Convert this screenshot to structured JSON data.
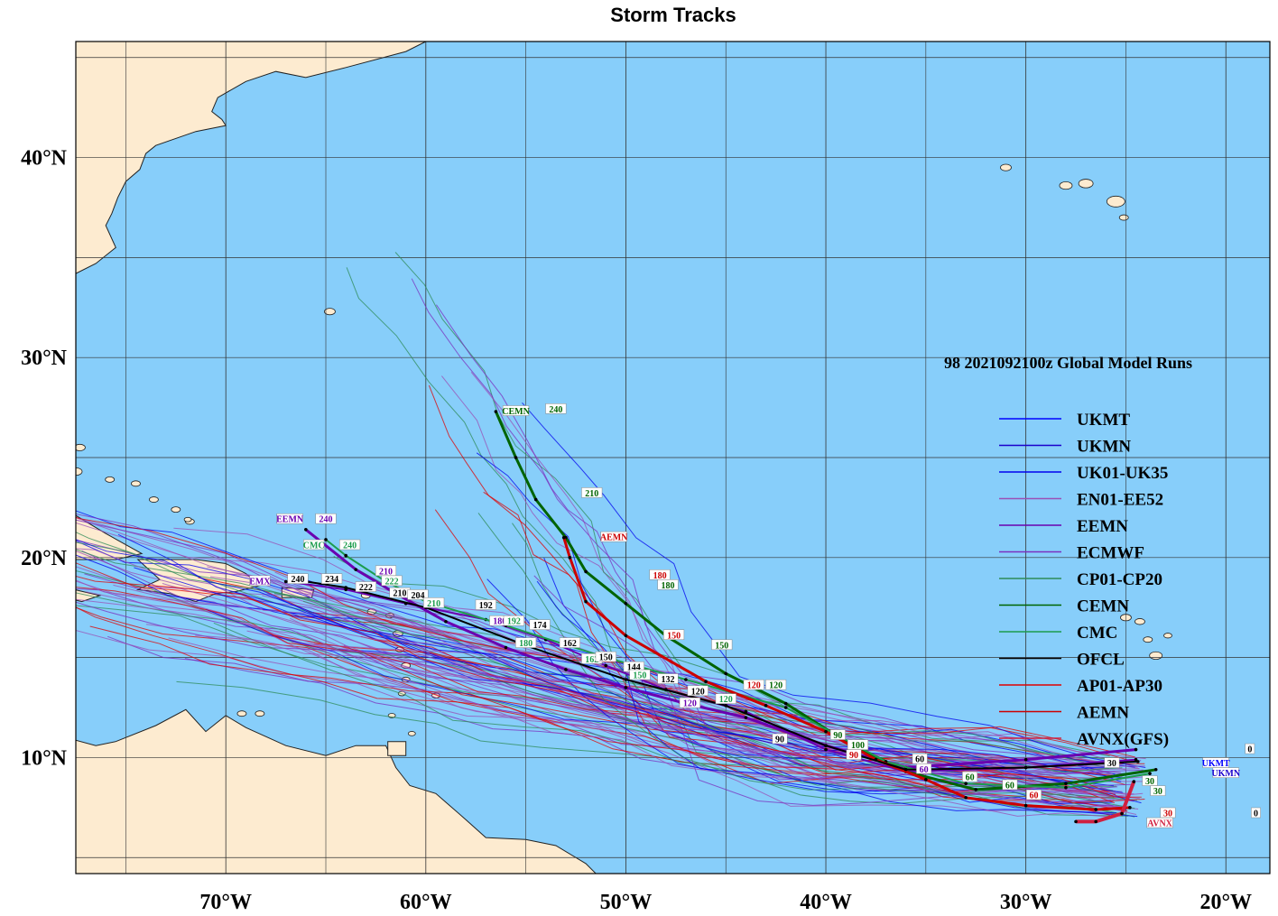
{
  "title": "Storm Tracks",
  "run_title": "98 2021092100z Global Model Runs",
  "colors": {
    "ocean": "#87cefa",
    "land": "#fdebd0",
    "grid": "#333333",
    "UKMT": "#0000ff",
    "UKMN": "#1a00cc",
    "UK01-UK35": "#0000ee",
    "EN01-EE52": "#9b4fb5",
    "EEMN": "#6a00b0",
    "ECMWF": "#7b2fbf",
    "CP01-CP20": "#2e8b57",
    "CEMN": "#006400",
    "CMC": "#1c9c4c",
    "OFCL": "#000000",
    "AP01-AP30": "#e00000",
    "AEMN": "#cc0000",
    "AVNX(GFS)": "#d02040"
  },
  "map": {
    "lon_range": [
      -77.5,
      -17.8
    ],
    "lat_range": [
      4.2,
      45.8
    ],
    "lon_ticks": [
      -70,
      -60,
      -50,
      -40,
      -30,
      -20
    ],
    "lat_ticks": [
      10,
      20,
      30,
      40
    ],
    "lon_labels": [
      "70°W",
      "60°W",
      "50°W",
      "40°W",
      "30°W",
      "20°W"
    ],
    "lat_labels": [
      "10°N",
      "20°N",
      "30°N",
      "40°N"
    ]
  },
  "legend": [
    {
      "name": "UKMT",
      "color_key": "UKMT"
    },
    {
      "name": "UKMN",
      "color_key": "UKMN"
    },
    {
      "name": "UK01-UK35",
      "color_key": "UK01-UK35"
    },
    {
      "name": "EN01-EE52",
      "color_key": "EN01-EE52"
    },
    {
      "name": "EEMN",
      "color_key": "EEMN"
    },
    {
      "name": "ECMWF",
      "color_key": "ECMWF"
    },
    {
      "name": "CP01-CP20",
      "color_key": "CP01-CP20"
    },
    {
      "name": "CEMN",
      "color_key": "CEMN"
    },
    {
      "name": "CMC",
      "color_key": "CMC"
    },
    {
      "name": "OFCL",
      "color_key": "OFCL"
    },
    {
      "name": "AP01-AP30",
      "color_key": "AP01-AP30"
    },
    {
      "name": "AEMN",
      "color_key": "AEMN"
    },
    {
      "name": "AVNX(GFS)",
      "color_key": "AVNX(GFS)"
    }
  ],
  "main_tracks": [
    {
      "name": "EEMN",
      "color_key": "EEMN",
      "width": 3,
      "points": [
        [
          -24.5,
          10.4
        ],
        [
          -30,
          9.9
        ],
        [
          -36,
          9.5
        ],
        [
          -40,
          10.6
        ],
        [
          -44,
          12.0
        ],
        [
          -47,
          12.7
        ],
        [
          -50,
          13.5
        ],
        [
          -53,
          14.4
        ],
        [
          -56,
          15.5
        ],
        [
          -59,
          16.8
        ],
        [
          -61.5,
          18.2
        ],
        [
          -63.5,
          19.4
        ],
        [
          -66,
          21.4
        ]
      ]
    },
    {
      "name": "EMX",
      "color_key": "EEMN",
      "width": 2,
      "points": [
        [
          -24.5,
          9.9
        ],
        [
          -30,
          9.5
        ],
        [
          -36,
          9.3
        ],
        [
          -40,
          10.4
        ],
        [
          -44,
          12.3
        ],
        [
          -48,
          13.4
        ],
        [
          -51,
          14.6
        ],
        [
          -54,
          15.9
        ],
        [
          -57,
          16.9
        ],
        [
          -61,
          17.7
        ],
        [
          -64,
          18.4
        ],
        [
          -67,
          18.8
        ]
      ]
    },
    {
      "name": "CEMN",
      "color_key": "CEMN",
      "width": 3,
      "points": [
        [
          -23.5,
          9.4
        ],
        [
          -28,
          8.7
        ],
        [
          -32.5,
          8.4
        ],
        [
          -36,
          9.3
        ],
        [
          -39,
          10.8
        ],
        [
          -42,
          12.7
        ],
        [
          -45,
          14.2
        ],
        [
          -48,
          16.1
        ],
        [
          -50,
          17.7
        ],
        [
          -52,
          19.3
        ],
        [
          -53,
          21.0
        ],
        [
          -54.5,
          22.9
        ],
        [
          -55.5,
          25.0
        ],
        [
          -56.5,
          27.3
        ]
      ]
    },
    {
      "name": "CMC",
      "color_key": "CMC",
      "width": 2,
      "points": [
        [
          -23.8,
          9.2
        ],
        [
          -28,
          8.5
        ],
        [
          -33,
          8.7
        ],
        [
          -37,
          9.8
        ],
        [
          -42,
          12.5
        ],
        [
          -47,
          13.9
        ],
        [
          -51,
          15.0
        ],
        [
          -56,
          16.6
        ],
        [
          -60,
          17.8
        ],
        [
          -62,
          18.8
        ],
        [
          -64,
          20.1
        ],
        [
          -65,
          20.9
        ]
      ]
    },
    {
      "name": "AEMN",
      "color_key": "AEMN",
      "width": 3,
      "points": [
        [
          -24.8,
          7.5
        ],
        [
          -26.5,
          7.4
        ],
        [
          -30,
          7.6
        ],
        [
          -33,
          8.0
        ],
        [
          -35,
          8.9
        ],
        [
          -37.5,
          9.9
        ],
        [
          -40,
          11.3
        ],
        [
          -43,
          12.6
        ],
        [
          -46,
          13.8
        ],
        [
          -50,
          16.1
        ],
        [
          -52,
          17.8
        ],
        [
          -52.8,
          20.0
        ],
        [
          -53.1,
          21.0
        ]
      ]
    },
    {
      "name": "AVNX",
      "color_key": "AVNX(GFS)",
      "width": 4,
      "points": [
        [
          -24.6,
          8.8
        ],
        [
          -25.2,
          7.2
        ],
        [
          -26.5,
          6.8
        ],
        [
          -27.5,
          6.8
        ]
      ]
    },
    {
      "name": "OFCL",
      "color_key": "OFCL",
      "width": 2,
      "points": [
        [
          -24.4,
          9.8
        ],
        [
          -30,
          9.5
        ],
        [
          -36,
          9.4
        ],
        [
          -40,
          10.6
        ],
        [
          -45,
          12.6
        ],
        [
          -50,
          13.9
        ],
        [
          -55,
          15.6
        ],
        [
          -60,
          17.5
        ],
        [
          -64,
          18.5
        ],
        [
          -66,
          18.8
        ]
      ]
    }
  ],
  "tags": [
    {
      "text": "EEMN",
      "lon": -66.8,
      "lat": 21.9,
      "kind": "name",
      "color_key": "EEMN"
    },
    {
      "text": "240",
      "lon": -65.0,
      "lat": 21.9,
      "kind": "label",
      "color_key": "EEMN"
    },
    {
      "text": "CMC",
      "lon": -65.6,
      "lat": 20.6,
      "kind": "name",
      "color_key": "CMC"
    },
    {
      "text": "240",
      "lon": -63.8,
      "lat": 20.6,
      "kind": "label",
      "color_key": "CMC"
    },
    {
      "text": "EMX",
      "lon": -68.3,
      "lat": 18.8,
      "kind": "name",
      "color_key": "EEMN"
    },
    {
      "text": "240",
      "lon": -66.4,
      "lat": 18.9,
      "kind": "label",
      "color_key": "OFCL"
    },
    {
      "text": "234",
      "lon": -64.7,
      "lat": 18.9,
      "kind": "label",
      "color_key": "OFCL"
    },
    {
      "text": "222",
      "lon": -63.0,
      "lat": 18.5,
      "kind": "label",
      "color_key": "OFCL"
    },
    {
      "text": "210",
      "lon": -61.3,
      "lat": 18.2,
      "kind": "label",
      "color_key": "OFCL"
    },
    {
      "text": "210",
      "lon": -62.0,
      "lat": 19.3,
      "kind": "label",
      "color_key": "EEMN"
    },
    {
      "text": "222",
      "lon": -61.7,
      "lat": 18.8,
      "kind": "label",
      "color_key": "CMC"
    },
    {
      "text": "204",
      "lon": -60.4,
      "lat": 18.1,
      "kind": "label",
      "color_key": "OFCL"
    },
    {
      "text": "210",
      "lon": -59.6,
      "lat": 17.7,
      "kind": "label",
      "color_key": "CMC"
    },
    {
      "text": "192",
      "lon": -57.0,
      "lat": 17.6,
      "kind": "label",
      "color_key": "OFCL"
    },
    {
      "text": "180",
      "lon": -56.3,
      "lat": 16.8,
      "kind": "label",
      "color_key": "EEMN"
    },
    {
      "text": "192",
      "lon": -55.6,
      "lat": 16.8,
      "kind": "label",
      "color_key": "CMC"
    },
    {
      "text": "174",
      "lon": -54.3,
      "lat": 16.6,
      "kind": "label",
      "color_key": "OFCL"
    },
    {
      "text": "180",
      "lon": -55.0,
      "lat": 15.7,
      "kind": "label",
      "color_key": "CMC"
    },
    {
      "text": "162",
      "lon": -52.8,
      "lat": 15.7,
      "kind": "label",
      "color_key": "OFCL"
    },
    {
      "text": "162",
      "lon": -51.7,
      "lat": 14.9,
      "kind": "label",
      "color_key": "CMC"
    },
    {
      "text": "150",
      "lon": -51.0,
      "lat": 15.0,
      "kind": "label",
      "color_key": "OFCL"
    },
    {
      "text": "144",
      "lon": -49.6,
      "lat": 14.5,
      "kind": "label",
      "color_key": "OFCL"
    },
    {
      "text": "150",
      "lon": -49.3,
      "lat": 14.1,
      "kind": "label",
      "color_key": "CMC"
    },
    {
      "text": "132",
      "lon": -47.9,
      "lat": 13.9,
      "kind": "label",
      "color_key": "OFCL"
    },
    {
      "text": "120",
      "lon": -46.4,
      "lat": 13.3,
      "kind": "label",
      "color_key": "OFCL"
    },
    {
      "text": "120",
      "lon": -46.8,
      "lat": 12.7,
      "kind": "label",
      "color_key": "EEMN"
    },
    {
      "text": "120",
      "lon": -45.0,
      "lat": 12.9,
      "kind": "label",
      "color_key": "CMC"
    },
    {
      "text": "120",
      "lon": -43.6,
      "lat": 13.6,
      "kind": "label",
      "color_key": "AEMN"
    },
    {
      "text": "120",
      "lon": -42.5,
      "lat": 13.6,
      "kind": "label",
      "color_key": "CEMN"
    },
    {
      "text": "150",
      "lon": -47.6,
      "lat": 16.1,
      "kind": "label",
      "color_key": "AEMN"
    },
    {
      "text": "150",
      "lon": -45.2,
      "lat": 15.6,
      "kind": "label",
      "color_key": "CEMN"
    },
    {
      "text": "180",
      "lon": -48.3,
      "lat": 19.1,
      "kind": "label",
      "color_key": "AEMN"
    },
    {
      "text": "180",
      "lon": -47.9,
      "lat": 18.6,
      "kind": "label",
      "color_key": "CEMN"
    },
    {
      "text": "AEMN",
      "lon": -50.6,
      "lat": 21.0,
      "kind": "name",
      "color_key": "AEMN"
    },
    {
      "text": "CEMN",
      "lon": -55.5,
      "lat": 27.3,
      "kind": "name",
      "color_key": "CEMN"
    },
    {
      "text": "240",
      "lon": -53.5,
      "lat": 27.4,
      "kind": "label",
      "color_key": "CEMN"
    },
    {
      "text": "210",
      "lon": -51.7,
      "lat": 23.2,
      "kind": "label",
      "color_key": "CEMN"
    },
    {
      "text": "90",
      "lon": -42.3,
      "lat": 10.9,
      "kind": "label",
      "color_key": "OFCL"
    },
    {
      "text": "90",
      "lon": -39.4,
      "lat": 11.1,
      "kind": "label",
      "color_key": "CEMN"
    },
    {
      "text": "100",
      "lon": -38.4,
      "lat": 10.6,
      "kind": "label",
      "color_key": "CEMN"
    },
    {
      "text": "90",
      "lon": -38.6,
      "lat": 10.1,
      "kind": "label",
      "color_key": "AEMN"
    },
    {
      "text": "60",
      "lon": -35.3,
      "lat": 9.9,
      "kind": "label",
      "color_key": "OFCL"
    },
    {
      "text": "60",
      "lon": -35.1,
      "lat": 9.4,
      "kind": "label",
      "color_key": "EEMN"
    },
    {
      "text": "60",
      "lon": -32.8,
      "lat": 9.0,
      "kind": "label",
      "color_key": "CEMN"
    },
    {
      "text": "60",
      "lon": -30.8,
      "lat": 8.6,
      "kind": "label",
      "color_key": "CEMN"
    },
    {
      "text": "60",
      "lon": -29.6,
      "lat": 8.1,
      "kind": "label",
      "color_key": "AEMN"
    },
    {
      "text": "30",
      "lon": -25.7,
      "lat": 9.7,
      "kind": "label",
      "color_key": "OFCL"
    },
    {
      "text": "30",
      "lon": -23.8,
      "lat": 8.8,
      "kind": "label",
      "color_key": "CEMN"
    },
    {
      "text": "30",
      "lon": -23.4,
      "lat": 8.3,
      "kind": "label",
      "color_key": "CEMN"
    },
    {
      "text": "30",
      "lon": -22.9,
      "lat": 7.2,
      "kind": "label",
      "color_key": "AEMN"
    },
    {
      "text": "AVNX",
      "lon": -23.3,
      "lat": 6.7,
      "kind": "name",
      "color_key": "AVNX(GFS)"
    },
    {
      "text": "UKMT",
      "lon": -20.5,
      "lat": 9.7,
      "kind": "name",
      "color_key": "UKMT"
    },
    {
      "text": "UKMN",
      "lon": -20.0,
      "lat": 9.2,
      "kind": "name",
      "color_key": "UKMN"
    },
    {
      "text": "0",
      "lon": -18.8,
      "lat": 10.4,
      "kind": "label",
      "color_key": "OFCL"
    },
    {
      "text": "0",
      "lon": -17.0,
      "lat": 9.4,
      "kind": "label",
      "color_key": "UKMT"
    },
    {
      "text": "0",
      "lon": -18.5,
      "lat": 7.2,
      "kind": "label",
      "color_key": "OFCL"
    },
    {
      "text": "0",
      "lon": -17.2,
      "lat": 7.7,
      "kind": "label",
      "color_key": "AEMN"
    }
  ]
}
